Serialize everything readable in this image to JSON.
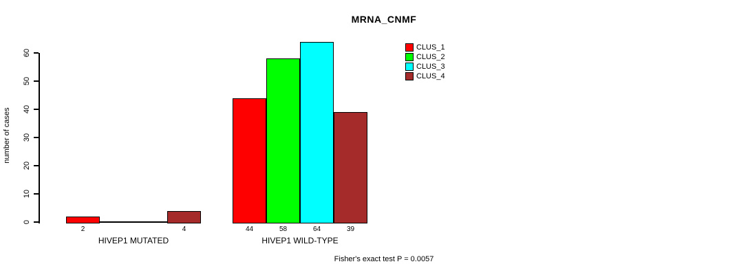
{
  "chart_data": {
    "type": "bar",
    "title": "MRNA_CNMF",
    "xlabel": "",
    "ylabel": "number of cases",
    "ylim": [
      0,
      60
    ],
    "yticks": [
      0,
      10,
      20,
      30,
      40,
      50,
      60
    ],
    "grid": false,
    "legend_position": "top-right",
    "series": [
      {
        "name": "CLUS_1",
        "color": "#FF0000"
      },
      {
        "name": "CLUS_2",
        "color": "#00FF00"
      },
      {
        "name": "CLUS_3",
        "color": "#00FFFF"
      },
      {
        "name": "CLUS_4",
        "color": "#A52A2A"
      }
    ],
    "groups": [
      {
        "label": "HIVEP1 MUTATED",
        "values": [
          2,
          0,
          0,
          4
        ]
      },
      {
        "label": "HIVEP1 WILD-TYPE",
        "values": [
          44,
          58,
          64,
          39
        ]
      }
    ],
    "value_labels_visible_only_when_positive": true
  },
  "annotations": {
    "fisher_test": "Fisher's exact test P = 0.0057"
  }
}
